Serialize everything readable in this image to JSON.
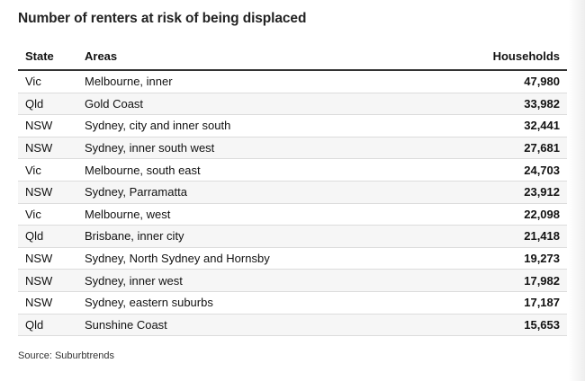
{
  "title": "Number of renters at risk of being displaced",
  "headers": {
    "state": "State",
    "areas": "Areas",
    "households": "Households"
  },
  "rows": [
    {
      "state": "Vic",
      "area": "Melbourne, inner",
      "households": "47,980"
    },
    {
      "state": "Qld",
      "area": "Gold Coast",
      "households": "33,982"
    },
    {
      "state": "NSW",
      "area": "Sydney, city and inner south",
      "households": "32,441"
    },
    {
      "state": "NSW",
      "area": "Sydney, inner south west",
      "households": "27,681"
    },
    {
      "state": "Vic",
      "area": "Melbourne, south east",
      "households": "24,703"
    },
    {
      "state": "NSW",
      "area": "Sydney, Parramatta",
      "households": "23,912"
    },
    {
      "state": "Vic",
      "area": "Melbourne, west",
      "households": "22,098"
    },
    {
      "state": "Qld",
      "area": "Brisbane, inner city",
      "households": "21,418"
    },
    {
      "state": "NSW",
      "area": "Sydney, North Sydney and Hornsby",
      "households": "19,273"
    },
    {
      "state": "NSW",
      "area": "Sydney, inner west",
      "households": "17,982"
    },
    {
      "state": "NSW",
      "area": "Sydney, eastern suburbs",
      "households": "17,187"
    },
    {
      "state": "Qld",
      "area": "Sunshine Coast",
      "households": "15,653"
    }
  ],
  "source": "Source: Suburbtrends"
}
